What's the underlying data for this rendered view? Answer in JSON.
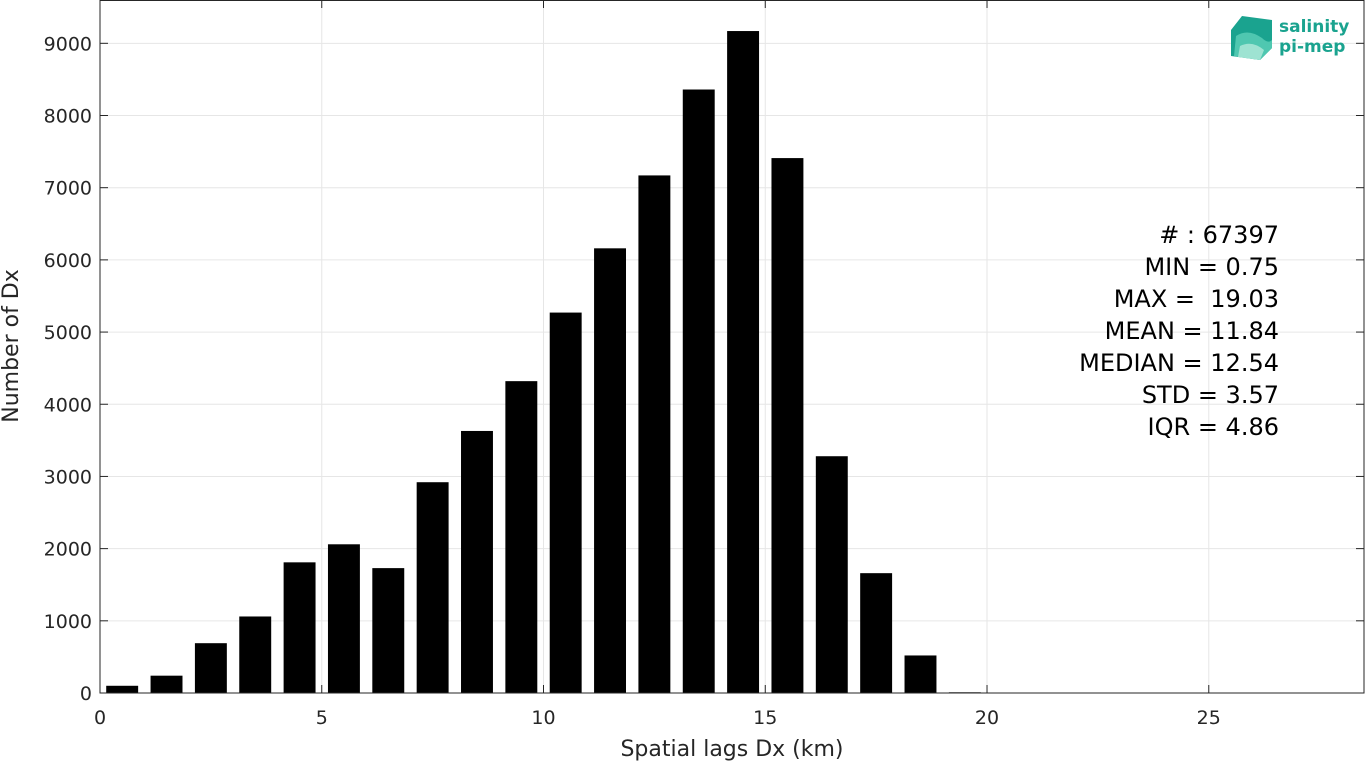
{
  "chart_data": {
    "type": "bar",
    "xlabel": "Spatial lags Dx (km)",
    "ylabel": "Number of Dx",
    "xlim": [
      0,
      28.5
    ],
    "ylim": [
      0,
      9600
    ],
    "xticks": [
      0,
      5,
      10,
      15,
      20,
      25
    ],
    "yticks": [
      0,
      1000,
      2000,
      3000,
      4000,
      5000,
      6000,
      7000,
      8000,
      9000
    ],
    "grid": true,
    "bin_width": 1,
    "x": [
      0.5,
      1.5,
      2.5,
      3.5,
      4.5,
      5.5,
      6.5,
      7.5,
      8.5,
      9.5,
      10.5,
      11.5,
      12.5,
      13.5,
      14.5,
      15.5,
      16.5,
      17.5,
      18.5,
      19.5
    ],
    "values": [
      100,
      240,
      690,
      1060,
      1810,
      2060,
      1730,
      2920,
      3630,
      4320,
      5270,
      6160,
      7170,
      8360,
      9170,
      7410,
      3280,
      1660,
      520,
      10
    ],
    "bar_color": "#000000",
    "annotations": [
      "# : 67397",
      "MIN = 0.75",
      "MAX =  19.03",
      "MEAN = 11.84",
      "MEDIAN = 12.54",
      "STD = 3.57",
      "IQR = 4.86"
    ]
  },
  "logo": {
    "line1": "salinity",
    "line2": "pi-mep",
    "color": "#1aa38f"
  }
}
